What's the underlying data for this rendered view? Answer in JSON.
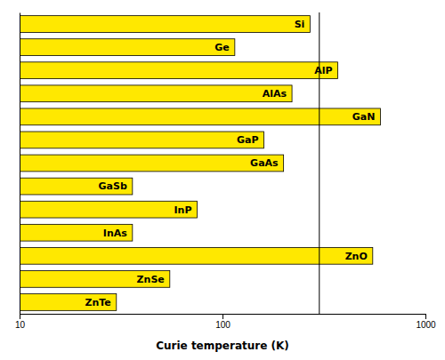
{
  "chart_data": {
    "type": "bar",
    "orientation": "horizontal",
    "log": "x",
    "categories": [
      "Si",
      "Ge",
      "AlP",
      "AlAs",
      "GaN",
      "GaP",
      "GaAs",
      "GaSb",
      "InP",
      "InAs",
      "ZnO",
      "ZnSe",
      "ZnTe"
    ],
    "values": [
      270,
      115,
      370,
      220,
      600,
      160,
      200,
      36,
      75,
      36,
      550,
      55,
      30
    ],
    "color": "#FFE800",
    "xlabel": "Curie temperature (K)",
    "xlim": [
      10,
      1000
    ],
    "xticks": [
      10,
      100,
      1000
    ],
    "vline": 300,
    "tick_labels": "x",
    "grid": false
  }
}
